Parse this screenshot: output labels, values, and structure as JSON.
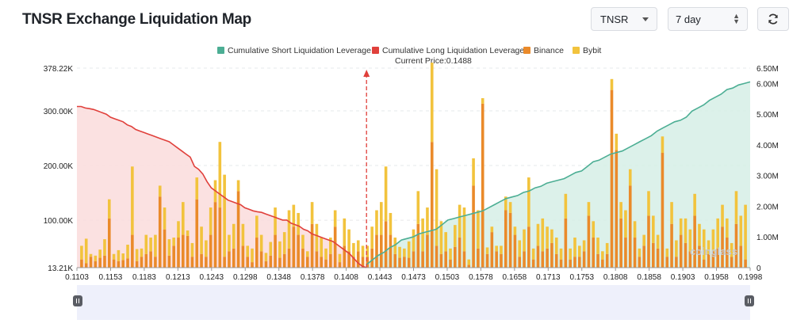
{
  "header": {
    "title": "TNSR Exchange Liquidation Map",
    "symbol": "TNSR",
    "range": "7 day",
    "icons": {
      "symbol_dropdown": "chevron-down-icon",
      "range_stepper": "up-down-icon",
      "refresh": "refresh-icon"
    }
  },
  "colors": {
    "short": "#4cae94",
    "short_fill": "#d6efe6",
    "long": "#e0403b",
    "long_fill": "#fadcdc",
    "binance": "#ea8a2a",
    "bybit": "#f2c33d",
    "price_line": "#e0403b",
    "slider_bg": "#eef0fb"
  },
  "chart_data": {
    "type": "bar",
    "legend": [
      "Cumulative Short Liquidation Leverage",
      "Cumulative Long Liquidation Leverage",
      "Binance",
      "Bybit"
    ],
    "current_price_label": "Current Price:0.1488",
    "current_price": 0.1488,
    "watermark": "coinglass",
    "left_axis_ticks": [
      "378.22K",
      "300.00K",
      "200.00K",
      "100.00K",
      "13.21K"
    ],
    "left_axis_values": [
      378220,
      300000,
      200000,
      100000,
      13210
    ],
    "ylim_left": [
      13210,
      378220
    ],
    "right_axis_ticks": [
      "6.50M",
      "6.00M",
      "5.00M",
      "4.00M",
      "3.00M",
      "2.00M",
      "1.00M",
      "0"
    ],
    "right_axis_values": [
      6500000,
      6000000,
      5000000,
      4000000,
      3000000,
      2000000,
      1000000,
      0
    ],
    "ylim_right": [
      0,
      6500000
    ],
    "x_tick_labels": [
      "0.1103",
      "0.1153",
      "0.1183",
      "0.1213",
      "0.1243",
      "0.1298",
      "0.1348",
      "0.1378",
      "0.1408",
      "0.1443",
      "0.1473",
      "0.1503",
      "0.1578",
      "0.1658",
      "0.1713",
      "0.1753",
      "0.1808",
      "0.1858",
      "0.1903",
      "0.1958",
      "0.1998"
    ],
    "bars": {
      "binance": [
        15,
        8,
        20,
        12,
        18,
        22,
        90,
        15,
        12,
        14,
        17,
        60,
        12,
        20,
        25,
        30,
        20,
        130,
        70,
        22,
        40,
        55,
        60,
        58,
        20,
        125,
        25,
        20,
        60,
        120,
        110,
        20,
        30,
        35,
        140,
        40,
        20,
        10,
        55,
        30,
        12,
        22,
        60,
        18,
        25,
        35,
        75,
        60,
        35,
        20,
        80,
        30,
        20,
        15,
        25,
        75,
        10,
        40,
        30,
        20,
        30,
        20,
        20,
        35,
        60,
        60,
        85,
        60,
        25,
        18,
        20,
        18,
        30,
        80,
        30,
        60,
        230,
        40,
        25,
        30,
        15,
        38,
        55,
        30,
        5,
        150,
        35,
        300,
        25,
        65,
        30,
        25,
        105,
        100,
        60,
        20,
        30,
        75,
        15,
        40,
        30,
        35,
        45,
        25,
        15,
        90,
        15,
        20,
        20,
        30,
        95,
        55,
        25,
        15,
        25,
        325,
        215,
        90,
        55,
        150,
        55,
        20,
        40,
        95,
        45,
        35,
        210,
        20,
        80,
        20,
        60,
        45,
        30,
        95,
        40,
        15,
        25,
        30,
        35,
        75,
        55,
        20,
        80,
        40,
        15
      ],
      "bybit": [
        25,
        45,
        5,
        10,
        15,
        30,
        35,
        10,
        20,
        12,
        25,
        125,
        22,
        15,
        35,
        25,
        40,
        20,
        40,
        30,
        15,
        30,
        60,
        10,
        25,
        40,
        50,
        30,
        50,
        40,
        120,
        150,
        30,
        45,
        20,
        40,
        20,
        25,
        40,
        30,
        15,
        25,
        50,
        30,
        40,
        70,
        40,
        40,
        25,
        10,
        40,
        50,
        35,
        20,
        30,
        30,
        15,
        50,
        40,
        25,
        20,
        20,
        20,
        40,
        45,
        60,
        100,
        40,
        30,
        20,
        15,
        30,
        40,
        60,
        60,
        50,
        145,
        140,
        60,
        35,
        20,
        40,
        60,
        80,
        10,
        50,
        70,
        10,
        12,
        10,
        10,
        15,
        25,
        20,
        15,
        30,
        40,
        90,
        20,
        40,
        60,
        40,
        25,
        30,
        20,
        45,
        20,
        35,
        20,
        20,
        25,
        30,
        30,
        15,
        20,
        20,
        30,
        30,
        50,
        30,
        30,
        15,
        20,
        45,
        50,
        25,
        30,
        15,
        40,
        30,
        30,
        45,
        40,
        40,
        40,
        55,
        25,
        40,
        55,
        40,
        35,
        25,
        60,
        55,
        100
      ]
    },
    "long_cumulative": [
      5.25,
      5.25,
      5.2,
      5.18,
      5.15,
      5.1,
      5.05,
      5.0,
      4.9,
      4.85,
      4.8,
      4.75,
      4.65,
      4.6,
      4.5,
      4.45,
      4.4,
      4.35,
      4.3,
      4.25,
      4.2,
      4.15,
      4.1,
      4.0,
      3.9,
      3.8,
      3.7,
      3.6,
      3.3,
      3.2,
      3.05,
      2.8,
      2.6,
      2.5,
      2.4,
      2.3,
      2.2,
      2.15,
      2.1,
      2.05,
      1.95,
      1.9,
      1.85,
      1.82,
      1.8,
      1.75,
      1.7,
      1.65,
      1.6,
      1.55,
      1.55,
      1.45,
      1.4,
      1.35,
      1.25,
      1.2,
      1.1,
      1.05,
      1.0,
      0.95,
      0.9,
      0.85,
      0.75,
      0.65,
      0.55,
      0.45,
      0.3,
      0.15,
      0.05,
      0.0
    ],
    "short_cumulative": [
      0.1,
      0.25,
      0.4,
      0.5,
      0.65,
      0.75,
      0.9,
      0.95,
      1.0,
      1.1,
      1.15,
      1.2,
      1.25,
      1.4,
      1.55,
      1.6,
      1.65,
      1.7,
      1.75,
      1.8,
      1.85,
      1.95,
      2.05,
      2.15,
      2.25,
      2.3,
      2.35,
      2.45,
      2.5,
      2.6,
      2.65,
      2.75,
      2.8,
      2.85,
      2.9,
      3.0,
      3.1,
      3.15,
      3.3,
      3.45,
      3.5,
      3.6,
      3.7,
      3.75,
      3.8,
      3.9,
      4.0,
      4.1,
      4.2,
      4.3,
      4.45,
      4.55,
      4.65,
      4.75,
      4.8,
      4.9,
      5.1,
      5.2,
      5.3,
      5.45,
      5.55,
      5.65,
      5.8,
      5.85,
      5.95,
      6.0,
      6.05
    ]
  }
}
